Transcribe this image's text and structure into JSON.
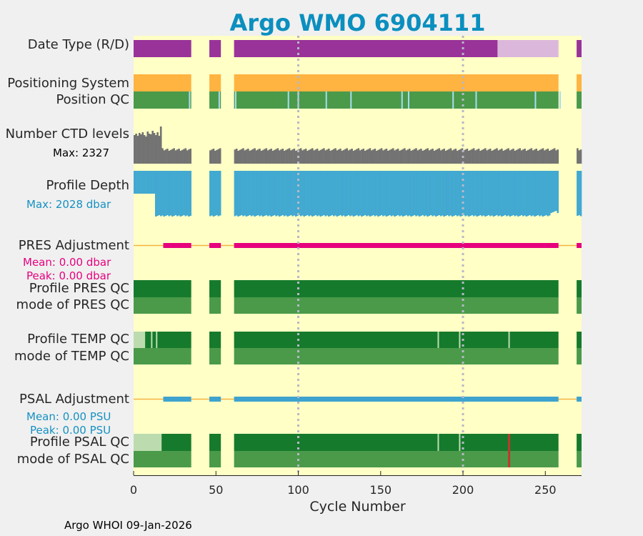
{
  "chart_data": {
    "type": "timeline",
    "title": "Argo WMO 6904111",
    "xlabel": "Cycle Number",
    "xlim": [
      0,
      272
    ],
    "xticks": [
      0,
      50,
      100,
      150,
      200,
      250
    ],
    "gridlines_x": [
      100,
      200
    ],
    "rows": {
      "date_type": "Date Type (R/D)",
      "positioning_system": "Positioning System",
      "position_qc": "Position QC",
      "ctd_levels": "Number CTD levels",
      "profile_depth": "Profile Depth",
      "pres_adjustment": "PRES Adjustment",
      "profile_pres_qc": "Profile PRES QC",
      "mode_pres_qc": "mode of PRES QC",
      "profile_temp_qc": "Profile TEMP QC",
      "mode_temp_qc": "mode of TEMP QC",
      "psal_adjustment": "PSAL Adjustment",
      "profile_psal_qc": "Profile PSAL QC",
      "mode_psal_qc": "mode of PSAL QC"
    },
    "annotations": {
      "ctd_max": "Max: 2327",
      "depth_max": "Max: 2028 dbar",
      "pres_mean": "Mean: 0.00 dbar",
      "pres_peak": "Peak: 0.00 dbar",
      "psal_mean": "Mean: 0.00 PSU",
      "psal_peak": "Peak: 0.00 PSU"
    },
    "cycle_segments": [
      [
        0,
        35
      ],
      [
        46,
        53
      ],
      [
        61,
        258
      ],
      [
        269,
        272
      ]
    ],
    "date_type": {
      "realtime_color": "#993399",
      "delayed_color": "#dbb8db",
      "realtime_until": 221,
      "delayed_until": 258
    },
    "positioning_color": "#ffb340",
    "position_qc": {
      "good_color": "#4a9a4a",
      "flag_color": "#aadcee",
      "flags": [
        34,
        52,
        62,
        94,
        100,
        117,
        132,
        163,
        167,
        194,
        208,
        244,
        259
      ]
    },
    "ctd_levels": {
      "max": 2327,
      "early_range": [
        0,
        17
      ],
      "color": "#737373"
    },
    "profile_depth": {
      "max": 2028,
      "unit": "dbar",
      "color": "#42a9d1"
    },
    "pres_adjustment": {
      "mean": 0.0,
      "peak": 0.0,
      "unit": "dbar",
      "color": "#e6007e",
      "from": 18
    },
    "psal_adjustment": {
      "mean": 0.0,
      "peak": 0.0,
      "unit": "PSU",
      "color": "#3ea3cf",
      "from": 18
    },
    "baseline_color": "#f5b442",
    "qc_colors": {
      "profile_A": "#167a2c",
      "profile_F": "#bcdcb0",
      "mode_good": "#4a9a4a",
      "bad": "#c0392b"
    },
    "temp_qc": {
      "light_until": 7,
      "light_marks": [
        11,
        14
      ],
      "gaps": [
        185,
        198,
        228
      ]
    },
    "psal_qc": {
      "light_until": 17,
      "gaps": [
        185,
        198
      ],
      "bad": [
        228
      ]
    }
  },
  "footer": "Argo WHOI 09-Jan-2026"
}
